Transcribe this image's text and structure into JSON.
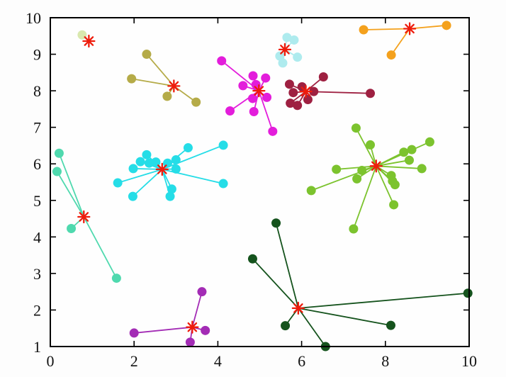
{
  "chart_data": {
    "type": "scatter",
    "title": "",
    "xlabel": "",
    "ylabel": "",
    "xlim": [
      0,
      10
    ],
    "ylim": [
      1,
      10
    ],
    "x_ticks": [
      0,
      2,
      4,
      6,
      8,
      10
    ],
    "x_tick_labels": [
      "0",
      "2",
      "4",
      "6",
      "8",
      "10"
    ],
    "y_ticks": [
      1,
      2,
      3,
      4,
      5,
      6,
      7,
      8,
      9,
      10
    ],
    "y_tick_labels": [
      "1",
      "2",
      "3",
      "4",
      "5",
      "6",
      "7",
      "8",
      "9",
      "10"
    ],
    "grid": false,
    "legend": "none",
    "plot_bg": "#fefefe",
    "frame_color": "#000000",
    "centroid_marker": {
      "shape": "asterisk",
      "color": "#ee1c0c",
      "size": 8,
      "stroke_width": 2.3
    },
    "point_radius": 6.5,
    "line_width": 1.8,
    "clusters": [
      {
        "name": "pale-green",
        "color": "#d9e8ae",
        "centroid": [
          0.92,
          9.36
        ],
        "points": [
          [
            0.76,
            9.53
          ]
        ]
      },
      {
        "name": "dark-khaki",
        "color": "#b5ab48",
        "centroid": [
          2.95,
          8.13
        ],
        "points": [
          [
            2.3,
            9.0
          ],
          [
            1.94,
            8.33
          ],
          [
            2.79,
            7.85
          ],
          [
            3.48,
            7.69
          ]
        ]
      },
      {
        "name": "magenta",
        "color": "#e31ddb",
        "centroid": [
          4.98,
          8.0
        ],
        "points": [
          [
            4.09,
            8.82
          ],
          [
            4.84,
            8.41
          ],
          [
            5.14,
            8.35
          ],
          [
            4.6,
            8.14
          ],
          [
            4.91,
            8.17
          ],
          [
            5.17,
            7.82
          ],
          [
            4.83,
            7.79
          ],
          [
            4.29,
            7.45
          ],
          [
            4.86,
            7.43
          ],
          [
            5.31,
            6.89
          ]
        ]
      },
      {
        "name": "pale-turquoise",
        "color": "#aeebee",
        "centroid": [
          5.6,
          9.13
        ],
        "points": [
          [
            5.65,
            9.46
          ],
          [
            5.82,
            9.39
          ],
          [
            5.9,
            8.92
          ],
          [
            5.48,
            8.95
          ],
          [
            5.55,
            8.76
          ]
        ]
      },
      {
        "name": "dark-raspberry",
        "color": "#9e2041",
        "centroid": [
          6.1,
          7.98
        ],
        "points": [
          [
            6.52,
            8.38
          ],
          [
            5.71,
            8.18
          ],
          [
            6.01,
            8.11
          ],
          [
            6.29,
            7.98
          ],
          [
            5.8,
            7.95
          ],
          [
            6.15,
            7.76
          ],
          [
            5.73,
            7.66
          ],
          [
            5.9,
            7.6
          ],
          [
            7.64,
            7.93
          ]
        ]
      },
      {
        "name": "orange",
        "color": "#f4a11d",
        "centroid": [
          8.58,
          9.7
        ],
        "points": [
          [
            7.48,
            9.67
          ],
          [
            9.46,
            9.79
          ],
          [
            8.14,
            8.98
          ]
        ]
      },
      {
        "name": "cyan",
        "color": "#25dde7",
        "centroid": [
          2.67,
          5.85
        ],
        "points": [
          [
            2.3,
            6.25
          ],
          [
            2.15,
            6.06
          ],
          [
            2.36,
            6.02
          ],
          [
            2.52,
            6.05
          ],
          [
            1.98,
            5.87
          ],
          [
            3.29,
            6.44
          ],
          [
            3.0,
            6.11
          ],
          [
            2.8,
            6.02
          ],
          [
            3.0,
            5.86
          ],
          [
            4.13,
            6.51
          ],
          [
            1.61,
            5.48
          ],
          [
            1.97,
            5.11
          ],
          [
            2.9,
            5.31
          ],
          [
            2.86,
            5.11
          ],
          [
            4.13,
            5.46
          ]
        ]
      },
      {
        "name": "medium-turquoise",
        "color": "#4fd9ae",
        "centroid": [
          0.8,
          4.55
        ],
        "points": [
          [
            0.21,
            6.29
          ],
          [
            0.16,
            5.79
          ],
          [
            0.5,
            4.23
          ],
          [
            1.58,
            2.87
          ]
        ]
      },
      {
        "name": "yellow-green",
        "color": "#7cc32e",
        "centroid": [
          7.78,
          5.94
        ],
        "points": [
          [
            7.3,
            6.98
          ],
          [
            7.64,
            6.52
          ],
          [
            9.06,
            6.6
          ],
          [
            8.44,
            6.32
          ],
          [
            8.63,
            6.39
          ],
          [
            8.57,
            6.1
          ],
          [
            8.87,
            5.87
          ],
          [
            6.83,
            5.85
          ],
          [
            7.44,
            5.82
          ],
          [
            7.32,
            5.59
          ],
          [
            8.14,
            5.68
          ],
          [
            8.17,
            5.53
          ],
          [
            8.23,
            5.43
          ],
          [
            6.23,
            5.27
          ],
          [
            8.2,
            4.88
          ],
          [
            7.24,
            4.22
          ]
        ]
      },
      {
        "name": "dark-green",
        "color": "#15531d",
        "centroid": [
          5.92,
          2.05
        ],
        "points": [
          [
            5.39,
            4.38
          ],
          [
            4.83,
            3.4
          ],
          [
            5.61,
            1.57
          ],
          [
            6.57,
            1.0
          ],
          [
            8.13,
            1.58
          ],
          [
            9.97,
            2.46
          ]
        ]
      },
      {
        "name": "purple",
        "color": "#a32cb5",
        "centroid": [
          3.39,
          1.53
        ],
        "points": [
          [
            3.62,
            2.5
          ],
          [
            2.0,
            1.37
          ],
          [
            3.7,
            1.44
          ],
          [
            3.34,
            1.12
          ]
        ]
      }
    ]
  }
}
